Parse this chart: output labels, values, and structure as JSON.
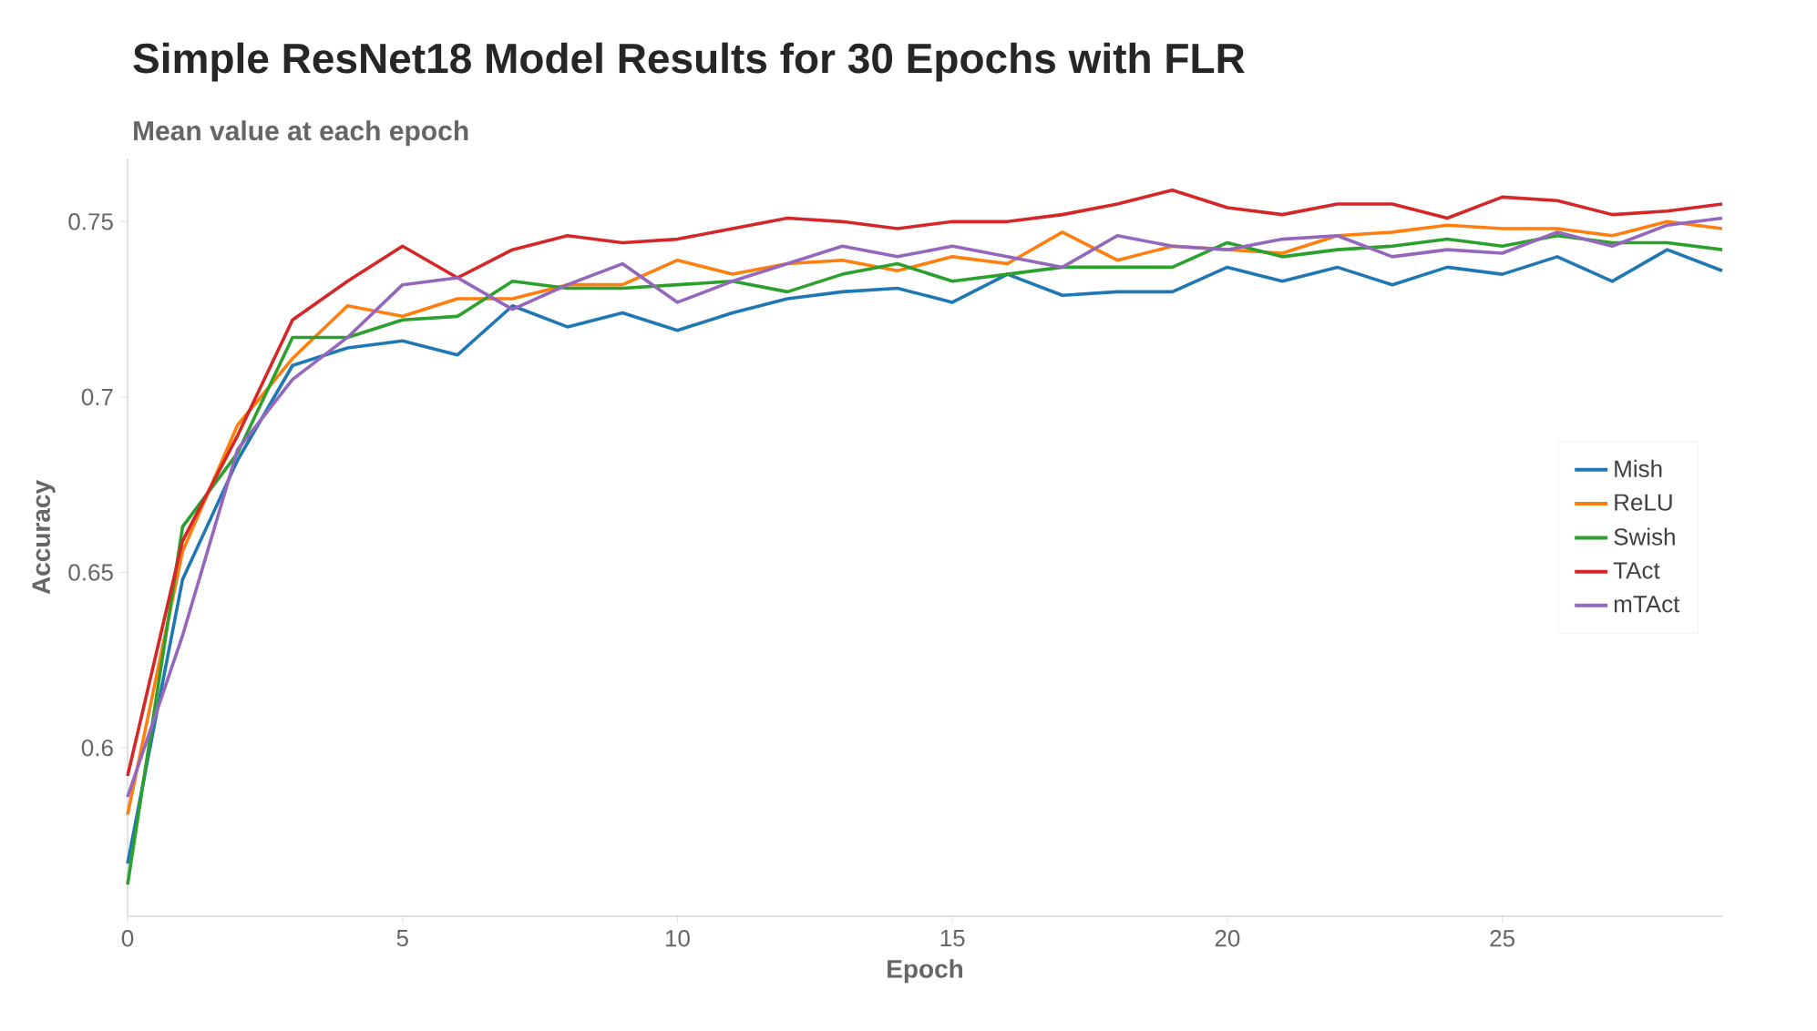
{
  "chart_data": {
    "type": "line",
    "title": "Simple ResNet18 Model Results for 30 Epochs with FLR",
    "subtitle": "Mean value at each epoch",
    "xlabel": "Epoch",
    "ylabel": "Accuracy",
    "x": [
      0,
      1,
      2,
      3,
      4,
      5,
      6,
      7,
      8,
      9,
      10,
      11,
      12,
      13,
      14,
      15,
      16,
      17,
      18,
      19,
      20,
      21,
      22,
      23,
      24,
      25,
      26,
      27,
      28,
      29
    ],
    "series": [
      {
        "name": "Mish",
        "color": "#1f77b4",
        "values": [
          0.567,
          0.648,
          0.682,
          0.709,
          0.714,
          0.716,
          0.712,
          0.726,
          0.72,
          0.724,
          0.719,
          0.724,
          0.728,
          0.73,
          0.731,
          0.727,
          0.735,
          0.729,
          0.73,
          0.73,
          0.737,
          0.733,
          0.737,
          0.732,
          0.737,
          0.735,
          0.74,
          0.733,
          0.742,
          0.736
        ]
      },
      {
        "name": "ReLU",
        "color": "#ff7f0e",
        "values": [
          0.581,
          0.656,
          0.692,
          0.711,
          0.726,
          0.723,
          0.728,
          0.728,
          0.732,
          0.732,
          0.739,
          0.735,
          0.738,
          0.739,
          0.736,
          0.74,
          0.738,
          0.747,
          0.739,
          0.743,
          0.742,
          0.741,
          0.746,
          0.747,
          0.749,
          0.748,
          0.748,
          0.746,
          0.75,
          0.748
        ]
      },
      {
        "name": "Swish",
        "color": "#2ca02c",
        "values": [
          0.561,
          0.663,
          0.684,
          0.717,
          0.717,
          0.722,
          0.723,
          0.733,
          0.731,
          0.731,
          0.732,
          0.733,
          0.73,
          0.735,
          0.738,
          0.733,
          0.735,
          0.737,
          0.737,
          0.737,
          0.744,
          0.74,
          0.742,
          0.743,
          0.745,
          0.743,
          0.746,
          0.744,
          0.744,
          0.742
        ]
      },
      {
        "name": "TAct",
        "color": "#d62728",
        "values": [
          0.592,
          0.659,
          0.689,
          0.722,
          0.733,
          0.743,
          0.734,
          0.742,
          0.746,
          0.744,
          0.745,
          0.748,
          0.751,
          0.75,
          0.748,
          0.75,
          0.75,
          0.752,
          0.755,
          0.759,
          0.754,
          0.752,
          0.755,
          0.755,
          0.751,
          0.757,
          0.756,
          0.752,
          0.753,
          0.755
        ]
      },
      {
        "name": "mTAct",
        "color": "#9467bd",
        "values": [
          0.586,
          0.632,
          0.685,
          0.705,
          0.717,
          0.732,
          0.734,
          0.725,
          0.732,
          0.738,
          0.727,
          0.733,
          0.738,
          0.743,
          0.74,
          0.743,
          0.74,
          0.737,
          0.746,
          0.743,
          0.742,
          0.745,
          0.746,
          0.74,
          0.742,
          0.741,
          0.747,
          0.743,
          0.749,
          0.751
        ]
      }
    ],
    "xlim": [
      0,
      29
    ],
    "xticks": [
      0,
      5,
      10,
      15,
      20,
      25
    ],
    "ylim": [
      0.552,
      0.768
    ],
    "yticks": [
      0.6,
      0.65,
      0.7,
      0.75
    ],
    "grid": false,
    "legend": "right",
    "marker": "none",
    "line_style": "solid"
  }
}
